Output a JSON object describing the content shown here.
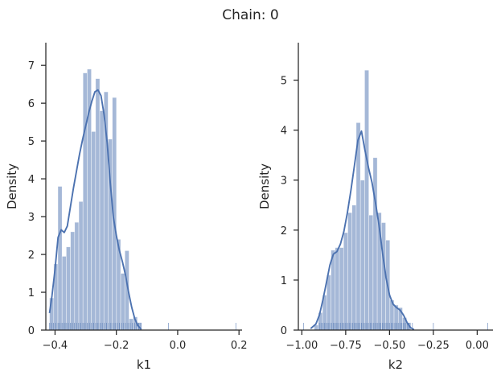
{
  "figure": {
    "title": "Chain: 0"
  },
  "chart_data": [
    {
      "type": "bar",
      "histogram": true,
      "xlabel": "k1",
      "ylabel": "Density",
      "xlim": [
        -0.43,
        0.21
      ],
      "ylim": [
        0,
        7.6
      ],
      "xticks": [
        -0.4,
        -0.2,
        0.0,
        0.2
      ],
      "xtick_labels": [
        "−0.4",
        "−0.2",
        "0.0",
        "0.2"
      ],
      "yticks": [
        0,
        1,
        2,
        3,
        4,
        5,
        6,
        7
      ],
      "ytick_labels": [
        "0",
        "1",
        "2",
        "3",
        "4",
        "5",
        "6",
        "7"
      ],
      "bin_edges": [
        -0.418,
        -0.4043,
        -0.3907,
        -0.377,
        -0.3634,
        -0.3497,
        -0.3361,
        -0.3224,
        -0.3088,
        -0.2951,
        -0.2815,
        -0.2678,
        -0.2542,
        -0.2405,
        -0.2269,
        -0.2132,
        -0.1996,
        -0.1859,
        -0.1723,
        -0.1586,
        -0.145,
        -0.1313,
        -0.1177
      ],
      "values": [
        0.85,
        1.75,
        3.8,
        1.95,
        2.2,
        2.6,
        2.85,
        3.4,
        6.8,
        6.9,
        5.25,
        6.65,
        5.8,
        6.3,
        5.05,
        6.15,
        2.4,
        1.5,
        2.1,
        0.3,
        0.35,
        0.2
      ],
      "kde": {
        "x": [
          -0.418,
          -0.41,
          -0.4,
          -0.39,
          -0.38,
          -0.37,
          -0.36,
          -0.35,
          -0.34,
          -0.33,
          -0.32,
          -0.31,
          -0.3,
          -0.29,
          -0.28,
          -0.27,
          -0.26,
          -0.25,
          -0.24,
          -0.23,
          -0.22,
          -0.21,
          -0.2,
          -0.19,
          -0.18,
          -0.17,
          -0.16,
          -0.15,
          -0.14,
          -0.13,
          -0.12,
          -0.118
        ],
        "y": [
          0.45,
          0.9,
          1.6,
          2.45,
          2.65,
          2.58,
          2.75,
          3.25,
          3.75,
          4.2,
          4.65,
          5.05,
          5.4,
          5.75,
          6.05,
          6.3,
          6.35,
          6.2,
          5.7,
          4.95,
          3.9,
          3.0,
          2.5,
          2.1,
          1.8,
          1.45,
          1.0,
          0.6,
          0.3,
          0.12,
          0.03,
          0.02
        ]
      },
      "rug": {
        "x": [
          -0.418,
          -0.412,
          -0.405,
          -0.398,
          -0.39,
          -0.384,
          -0.377,
          -0.37,
          -0.364,
          -0.357,
          -0.35,
          -0.344,
          -0.337,
          -0.33,
          -0.323,
          -0.316,
          -0.309,
          -0.302,
          -0.295,
          -0.288,
          -0.281,
          -0.274,
          -0.267,
          -0.26,
          -0.253,
          -0.246,
          -0.239,
          -0.232,
          -0.225,
          -0.218,
          -0.211,
          -0.204,
          -0.197,
          -0.19,
          -0.183,
          -0.176,
          -0.169,
          -0.162,
          -0.155,
          -0.148,
          -0.141,
          -0.134,
          -0.127,
          -0.12,
          -0.03,
          0.19
        ],
        "highlight": [
          -0.03,
          0.19
        ]
      }
    },
    {
      "type": "bar",
      "histogram": true,
      "xlabel": "k2",
      "ylabel": "Density",
      "xlim": [
        -1.02,
        0.09
      ],
      "ylim": [
        0,
        5.75
      ],
      "xticks": [
        -1.0,
        -0.75,
        -0.5,
        -0.25,
        0.0
      ],
      "xtick_labels": [
        "−1.00",
        "−0.75",
        "−0.50",
        "−0.25",
        "0.00"
      ],
      "yticks": [
        0,
        1,
        2,
        3,
        4,
        5
      ],
      "ytick_labels": [
        "0",
        "1",
        "2",
        "3",
        "4",
        "5"
      ],
      "bin_edges": [
        -0.93,
        -0.906,
        -0.882,
        -0.858,
        -0.834,
        -0.81,
        -0.786,
        -0.762,
        -0.738,
        -0.714,
        -0.69,
        -0.666,
        -0.642,
        -0.618,
        -0.594,
        -0.57,
        -0.546,
        -0.522,
        -0.498,
        -0.474,
        -0.45,
        -0.426,
        -0.402,
        -0.378
      ],
      "values": [
        0.1,
        0.35,
        0.7,
        1.1,
        1.6,
        1.65,
        1.65,
        1.95,
        2.35,
        2.5,
        4.15,
        3.0,
        5.2,
        2.3,
        3.45,
        2.35,
        2.15,
        1.8,
        0.6,
        0.5,
        0.45,
        0.25,
        0.15
      ],
      "kde": {
        "x": [
          -0.95,
          -0.92,
          -0.9,
          -0.88,
          -0.86,
          -0.84,
          -0.82,
          -0.8,
          -0.78,
          -0.76,
          -0.74,
          -0.72,
          -0.7,
          -0.68,
          -0.66,
          -0.64,
          -0.62,
          -0.6,
          -0.58,
          -0.56,
          -0.54,
          -0.52,
          -0.5,
          -0.48,
          -0.46,
          -0.44,
          -0.42,
          -0.4,
          -0.38,
          -0.36
        ],
        "y": [
          0.03,
          0.12,
          0.3,
          0.6,
          0.95,
          1.3,
          1.52,
          1.57,
          1.72,
          1.98,
          2.35,
          2.8,
          3.3,
          3.8,
          3.98,
          3.6,
          3.25,
          2.95,
          2.55,
          2.1,
          1.55,
          1.05,
          0.7,
          0.52,
          0.45,
          0.4,
          0.3,
          0.15,
          0.05,
          0.01
        ]
      },
      "rug": {
        "x": [
          -0.99,
          -0.9,
          -0.89,
          -0.88,
          -0.87,
          -0.86,
          -0.85,
          -0.84,
          -0.83,
          -0.82,
          -0.81,
          -0.8,
          -0.79,
          -0.78,
          -0.77,
          -0.76,
          -0.75,
          -0.74,
          -0.73,
          -0.72,
          -0.71,
          -0.7,
          -0.69,
          -0.68,
          -0.67,
          -0.66,
          -0.65,
          -0.64,
          -0.63,
          -0.62,
          -0.61,
          -0.6,
          -0.59,
          -0.58,
          -0.57,
          -0.56,
          -0.55,
          -0.54,
          -0.53,
          -0.52,
          -0.51,
          -0.5,
          -0.49,
          -0.48,
          -0.47,
          -0.46,
          -0.45,
          -0.44,
          -0.43,
          -0.42,
          -0.41,
          -0.4,
          -0.39,
          -0.37,
          -0.25,
          0.06
        ],
        "highlight": [
          -0.99,
          -0.25,
          0.06
        ]
      }
    }
  ]
}
